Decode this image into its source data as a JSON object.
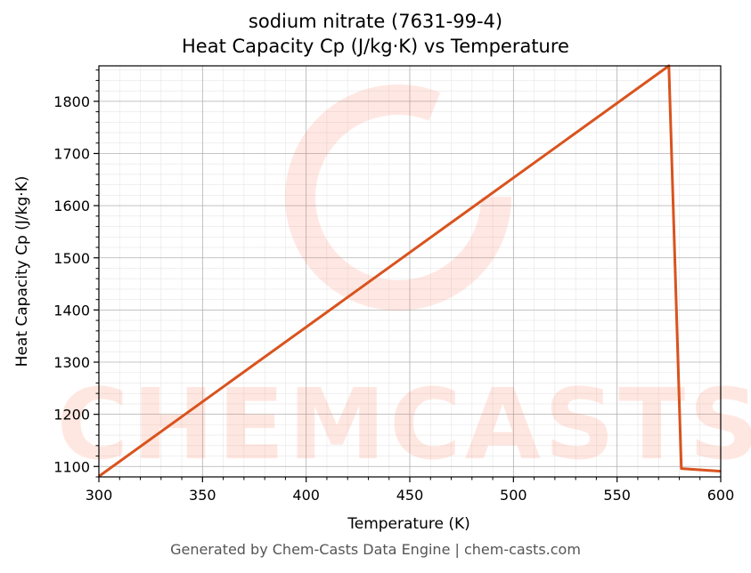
{
  "chart_data": {
    "type": "line",
    "title": "sodium nitrate (7631-99-4)",
    "subtitle": "Heat Capacity Cp (J/kg·K) vs Temperature",
    "xlabel": "Temperature (K)",
    "ylabel": "Heat Capacity Cp (J/kg·K)",
    "xlim": [
      300,
      600
    ],
    "ylim": [
      1080,
      1868
    ],
    "xticks": [
      300,
      350,
      400,
      450,
      500,
      550,
      600
    ],
    "yticks": [
      1100,
      1200,
      1300,
      1400,
      1500,
      1600,
      1700,
      1800
    ],
    "grid": true,
    "series": [
      {
        "color": "#d9531e",
        "x": [
          300,
          575,
          581,
          600
        ],
        "y": [
          1081,
          1868,
          1096,
          1091
        ]
      }
    ]
  },
  "watermark": "CHEMCASTS",
  "footer": "Generated by Chem-Casts Data Engine | chem-casts.com"
}
